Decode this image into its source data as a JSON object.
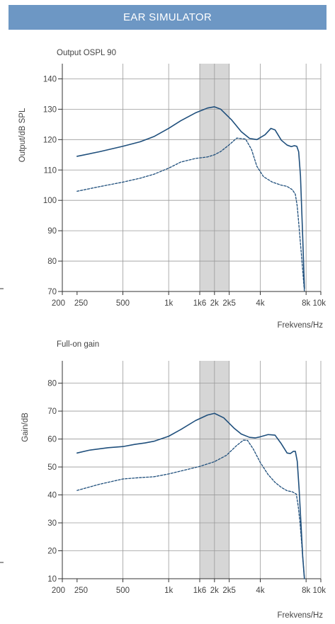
{
  "header": {
    "title": "EAR SIMULATOR",
    "bg": "#6d97c4"
  },
  "colors": {
    "line": "#1f4f7c",
    "band": "#d6d6d6",
    "grid": "#9a9a9a",
    "axis": "#333333"
  },
  "chart_data": [
    {
      "type": "line",
      "title": "Output OSPL 90",
      "xlabel": "Frekvens/Hz",
      "ylabel": "Output/dB SPL",
      "xscale": "log",
      "xlim": [
        200,
        10000
      ],
      "ylim": [
        70,
        145
      ],
      "xticks": [
        {
          "value": 200,
          "label": "200"
        },
        {
          "value": 250,
          "label": "250"
        },
        {
          "value": 500,
          "label": "500"
        },
        {
          "value": 1000,
          "label": "1k"
        },
        {
          "value": 1600,
          "label": "1k6"
        },
        {
          "value": 2000,
          "label": "2k"
        },
        {
          "value": 2500,
          "label": "2k5"
        },
        {
          "value": 4000,
          "label": "4k"
        },
        {
          "value": 8000,
          "label": "8k"
        },
        {
          "value": 10000,
          "label": "10k"
        }
      ],
      "yticks": [
        {
          "value": 70,
          "label": "70"
        },
        {
          "value": 80,
          "label": "80"
        },
        {
          "value": 90,
          "label": "90"
        },
        {
          "value": 100,
          "label": "100"
        },
        {
          "value": 110,
          "label": "110"
        },
        {
          "value": 120,
          "label": "120"
        },
        {
          "value": 130,
          "label": "130"
        },
        {
          "value": 140,
          "label": "140"
        }
      ],
      "grid": true,
      "shaded_band": [
        1600,
        2500
      ],
      "series": [
        {
          "style": "solid",
          "x": [
            250,
            350,
            500,
            650,
            800,
            1000,
            1200,
            1500,
            1800,
            2000,
            2200,
            2600,
            3000,
            3400,
            3800,
            4300,
            4700,
            5000,
            5500,
            6000,
            6400,
            6700,
            6950,
            7150,
            7350,
            7600,
            7800
          ],
          "y": [
            114.5,
            116,
            117.8,
            119.3,
            121,
            123.7,
            126.2,
            128.8,
            130.4,
            130.8,
            130,
            126.4,
            122.6,
            120.4,
            120,
            121.6,
            123.7,
            123.2,
            119.8,
            118.2,
            117.7,
            118,
            117.8,
            116,
            108,
            88,
            71
          ]
        },
        {
          "style": "dashed",
          "x": [
            250,
            350,
            500,
            650,
            800,
            1000,
            1200,
            1500,
            1800,
            2000,
            2200,
            2500,
            2800,
            3200,
            3500,
            3800,
            4200,
            4800,
            5500,
            6000,
            6500,
            6800,
            7000,
            7200,
            7400,
            7600,
            7800
          ],
          "y": [
            103,
            104.5,
            106,
            107.3,
            108.6,
            110.6,
            112.6,
            113.8,
            114.3,
            115,
            116.1,
            118.3,
            120.5,
            120.2,
            116.8,
            111.2,
            107.8,
            106,
            105,
            104.6,
            103.5,
            102,
            98,
            91,
            84,
            77,
            70
          ]
        }
      ]
    },
    {
      "type": "line",
      "title": "Full-on gain",
      "xlabel": "Frekvens/Hz",
      "ylabel": "Gain/dB",
      "xscale": "log",
      "xlim": [
        200,
        10000
      ],
      "ylim": [
        10,
        88
      ],
      "xticks": [
        {
          "value": 200,
          "label": "200"
        },
        {
          "value": 250,
          "label": "250"
        },
        {
          "value": 500,
          "label": "500"
        },
        {
          "value": 1000,
          "label": "1k"
        },
        {
          "value": 1600,
          "label": "1k6"
        },
        {
          "value": 2000,
          "label": "2k"
        },
        {
          "value": 2500,
          "label": "2k5"
        },
        {
          "value": 4000,
          "label": "4k"
        },
        {
          "value": 8000,
          "label": "8k"
        },
        {
          "value": 10000,
          "label": "10k"
        }
      ],
      "yticks": [
        {
          "value": 10,
          "label": "10"
        },
        {
          "value": 20,
          "label": "20"
        },
        {
          "value": 30,
          "label": "30"
        },
        {
          "value": 40,
          "label": "40"
        },
        {
          "value": 50,
          "label": "50"
        },
        {
          "value": 60,
          "label": "60"
        },
        {
          "value": 70,
          "label": "70"
        },
        {
          "value": 80,
          "label": "80"
        }
      ],
      "grid": true,
      "shaded_band": [
        1600,
        2500
      ],
      "series": [
        {
          "style": "solid",
          "x": [
            250,
            300,
            400,
            500,
            600,
            700,
            800,
            1000,
            1200,
            1500,
            1800,
            2000,
            2300,
            2700,
            3000,
            3400,
            3700,
            4000,
            4500,
            5000,
            5500,
            6000,
            6300,
            6600,
            6800,
            7000,
            7200,
            7400,
            7600,
            7800
          ],
          "y": [
            55,
            56,
            56.9,
            57.3,
            58.1,
            58.6,
            59.2,
            61,
            63.4,
            66.6,
            68.6,
            69.2,
            67.6,
            63.8,
            61.8,
            60.6,
            60.4,
            60.8,
            61.6,
            61.4,
            58.3,
            55,
            54.8,
            55.6,
            55.6,
            52,
            42,
            30,
            18,
            10
          ]
        },
        {
          "style": "dashed",
          "x": [
            250,
            350,
            500,
            650,
            800,
            1000,
            1300,
            1600,
            2000,
            2400,
            2800,
            3100,
            3300,
            3600,
            4000,
            4500,
            5000,
            5500,
            6000,
            6500,
            6900,
            7100,
            7300,
            7500,
            7800
          ],
          "y": [
            41.6,
            43.8,
            45.7,
            46.2,
            46.5,
            47.5,
            49,
            50.2,
            51.9,
            54.2,
            57.7,
            59.6,
            59.5,
            56.4,
            51.6,
            47.3,
            44.5,
            42.7,
            41.5,
            41.1,
            40.3,
            36,
            30,
            22,
            10
          ]
        }
      ]
    }
  ]
}
